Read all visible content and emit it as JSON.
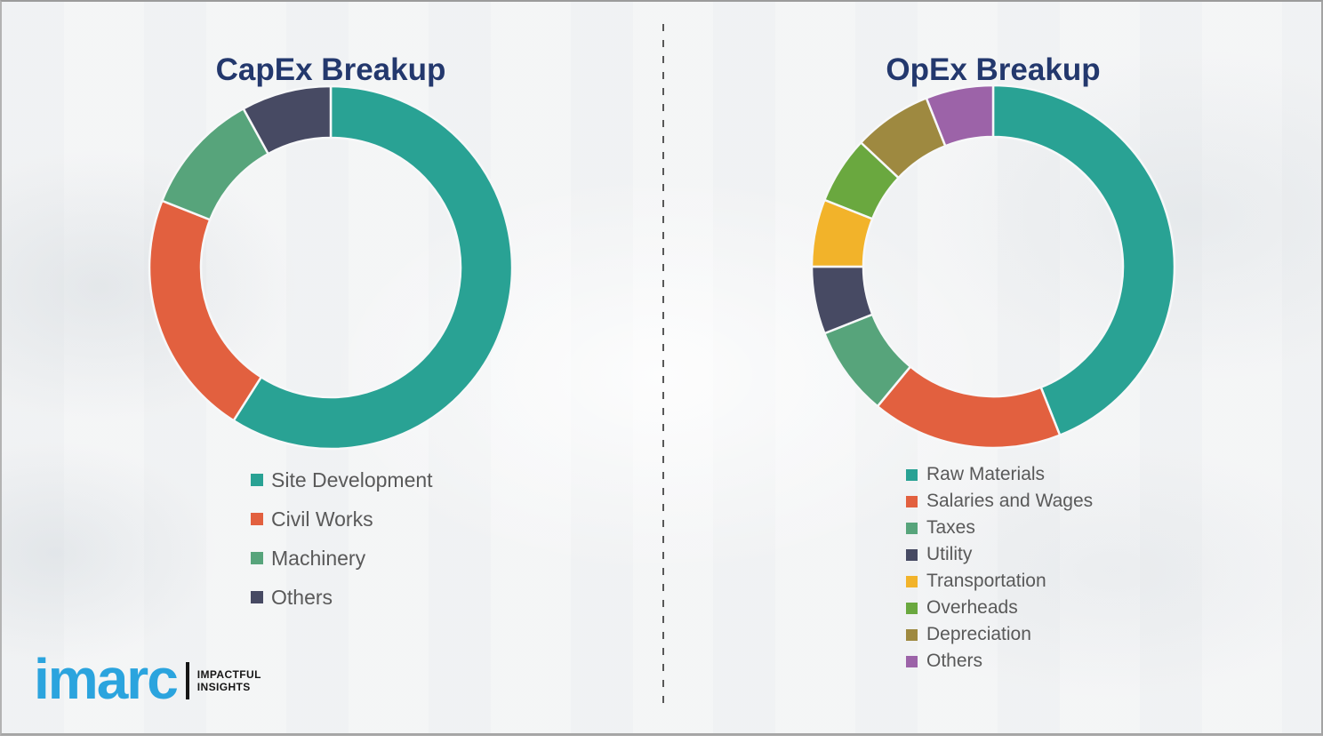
{
  "chart_data": [
    {
      "type": "donut",
      "title": "CapEx Breakup",
      "categories": [
        "Site Development",
        "Civil Works",
        "Machinery",
        "Others"
      ],
      "values": [
        59,
        22,
        11,
        8
      ],
      "unit": "percent-estimated-from-arc-angles",
      "colors": [
        "#29A294",
        "#E2603F",
        "#57A47B",
        "#474A63"
      ],
      "start_angle_deg": 0,
      "direction": "clockwise",
      "legend_position": "below-left",
      "inner_radius_ratio": 0.715
    },
    {
      "type": "donut",
      "title": "OpEx Breakup",
      "categories": [
        "Raw Materials",
        "Salaries and Wages",
        "Taxes",
        "Utility",
        "Transportation",
        "Overheads",
        "Depreciation",
        "Others"
      ],
      "values": [
        44,
        17,
        8,
        6,
        6,
        6,
        7,
        6
      ],
      "unit": "percent-estimated-from-arc-angles",
      "colors": [
        "#29A294",
        "#E2603F",
        "#57A47B",
        "#474A63",
        "#F2B32A",
        "#6AA83F",
        "#9E8940",
        "#9C63A8"
      ],
      "start_angle_deg": 0,
      "direction": "clockwise",
      "legend_position": "below-left",
      "inner_radius_ratio": 0.715
    }
  ],
  "titles": {
    "title_color": "#23386D"
  },
  "legend_text_color": "#595959",
  "logo": {
    "brand": "imarc",
    "tagline_line1": "IMPACTFUL",
    "tagline_line2": "INSIGHTS",
    "brand_color": "#2BA4DE",
    "tagline_color": "#151515"
  }
}
